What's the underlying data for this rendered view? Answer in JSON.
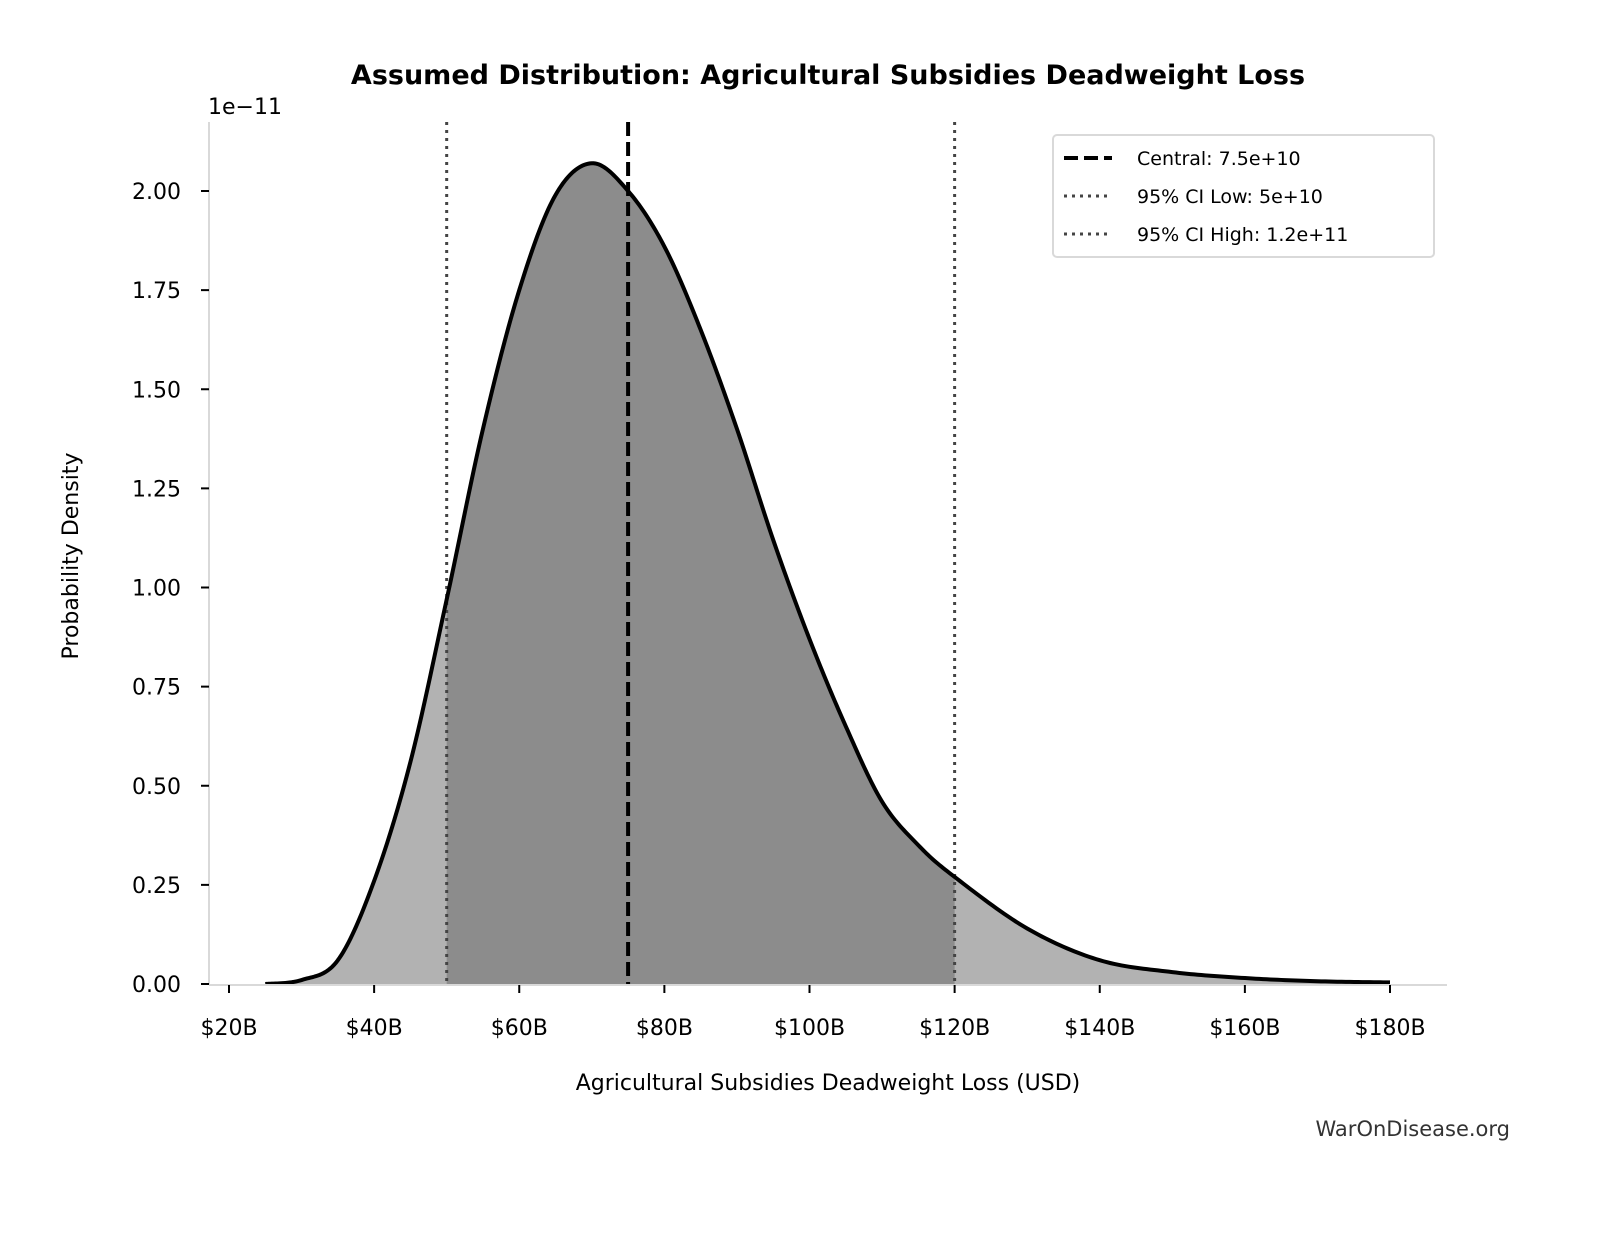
{
  "chart_data": {
    "type": "area",
    "title": "Assumed Distribution: Agricultural Subsidies Deadweight Loss",
    "xlabel": "Agricultural Subsidies Deadweight Loss (USD)",
    "ylabel": "Probability Density",
    "y_scale_label": "1e−11",
    "xlim": [
      17,
      188
    ],
    "ylim": [
      0,
      2.17
    ],
    "x_unit": "billion USD",
    "y_unit": "1e-11",
    "x_ticks": [
      20,
      40,
      60,
      80,
      100,
      120,
      140,
      160,
      180
    ],
    "x_tick_labels": [
      "$20B",
      "$40B",
      "$60B",
      "$80B",
      "$100B",
      "$120B",
      "$140B",
      "$160B",
      "$180B"
    ],
    "y_ticks": [
      0,
      0.25,
      0.5,
      0.75,
      1.0,
      1.25,
      1.5,
      1.75,
      2.0
    ],
    "y_tick_labels": [
      "0.00",
      "0.25",
      "0.50",
      "0.75",
      "1.00",
      "1.25",
      "1.50",
      "1.75",
      "2.00"
    ],
    "grid": false,
    "legend_placement": "top-right",
    "curve": {
      "x": [
        25,
        30,
        35,
        40,
        45,
        50,
        55,
        60,
        65,
        70,
        75,
        80,
        85,
        90,
        95,
        100,
        105,
        110,
        115,
        120,
        130,
        140,
        150,
        160,
        170,
        180
      ],
      "y": [
        0.0,
        0.01,
        0.06,
        0.26,
        0.56,
        0.97,
        1.4,
        1.75,
        1.99,
        2.07,
        2.0,
        1.86,
        1.65,
        1.4,
        1.12,
        0.87,
        0.65,
        0.46,
        0.35,
        0.27,
        0.14,
        0.06,
        0.03,
        0.015,
        0.007,
        0.004
      ]
    },
    "reference_lines": [
      {
        "label": "Central: 7.5e+10",
        "x": 75,
        "style": "dashed"
      },
      {
        "label": "95% CI Low: 5e+10",
        "x": 50,
        "style": "dotted"
      },
      {
        "label": "95% CI High: 1.2e+11",
        "x": 120,
        "style": "dotted"
      }
    ],
    "colors": {
      "outer_fill": "#b2b2b2",
      "ci_fill": "#8c8c8c",
      "curve": "#000000",
      "spine": "#d9d9d9"
    }
  },
  "watermark": "WarOnDisease.org"
}
